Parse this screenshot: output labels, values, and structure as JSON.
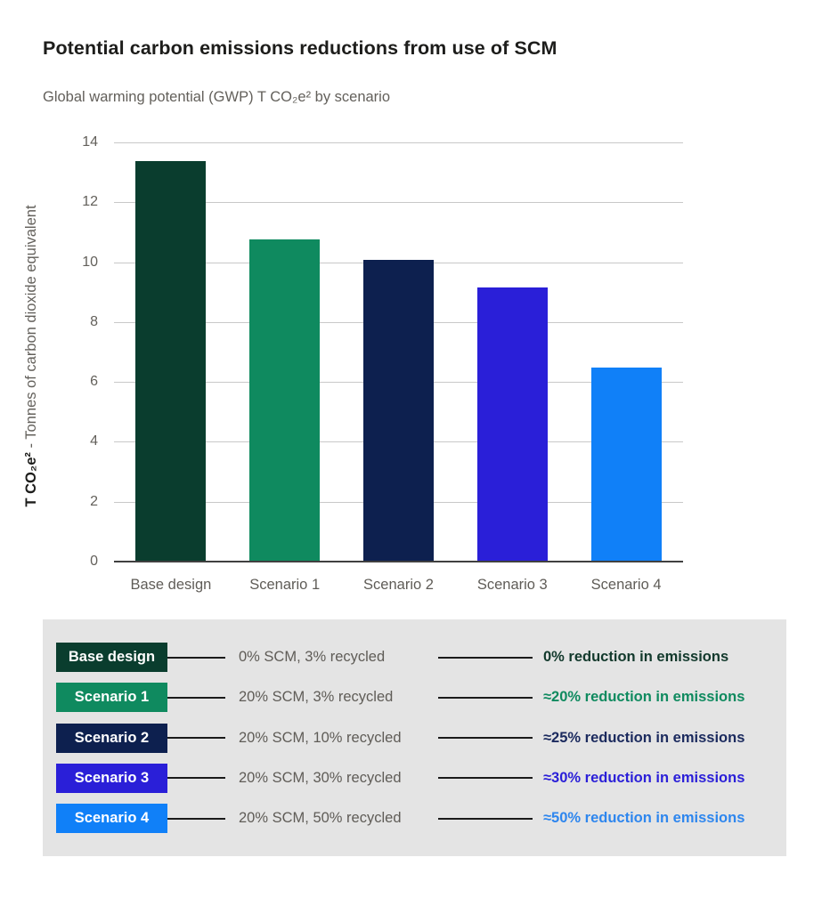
{
  "header": {
    "title": "Potential carbon emissions reductions from use of SCM",
    "subtitle": "Global warming potential (GWP) T CO₂e² by scenario"
  },
  "chart_data": {
    "type": "bar",
    "categories": [
      "Base design",
      "Scenario 1",
      "Scenario 2",
      "Scenario 3",
      "Scenario 4"
    ],
    "values": [
      13.4,
      10.8,
      10.1,
      9.2,
      6.5
    ],
    "bar_colors": [
      "#0a3d2e",
      "#0f8a5f",
      "#0d204f",
      "#2a1fd8",
      "#1080f8"
    ],
    "title": "Potential carbon emissions reductions from use of SCM",
    "subtitle": "Global warming potential (GWP) T CO₂e² by scenario",
    "xlabel": "",
    "ylabel_bold": "T CO₂e²",
    "ylabel_rest": " - Tonnes of carbon dioxide equivalent",
    "yticks": [
      0,
      2,
      4,
      6,
      8,
      10,
      12,
      14
    ],
    "ylim": [
      0,
      14
    ],
    "grid": "horizontal",
    "gridline_color": "#c8c8c8",
    "axis_color": "#404040",
    "legend_position": "bottom-panel"
  },
  "legend": {
    "background": "#e4e4e4",
    "rows": [
      {
        "badge": "Base design",
        "badge_color": "#0a3d2e",
        "spec": "0% SCM, 3% recycled",
        "result": "0% reduction in emissions",
        "result_color": "#12392c"
      },
      {
        "badge": "Scenario 1",
        "badge_color": "#0f8a5f",
        "spec": "20% SCM, 3% recycled",
        "result": "≈20% reduction in emissions",
        "result_color": "#0f8a5f"
      },
      {
        "badge": "Scenario 2",
        "badge_color": "#0d204f",
        "spec": "20% SCM, 10% recycled",
        "result": "≈25% reduction in emissions",
        "result_color": "#1b2a5e"
      },
      {
        "badge": "Scenario 3",
        "badge_color": "#2a1fd8",
        "spec": "20% SCM, 30% recycled",
        "result": "≈30% reduction in emissions",
        "result_color": "#2a1fd8"
      },
      {
        "badge": "Scenario 4",
        "badge_color": "#1080f8",
        "spec": "20% SCM, 50% recycled",
        "result": "≈50% reduction in emissions",
        "result_color": "#2e86ee"
      }
    ]
  }
}
